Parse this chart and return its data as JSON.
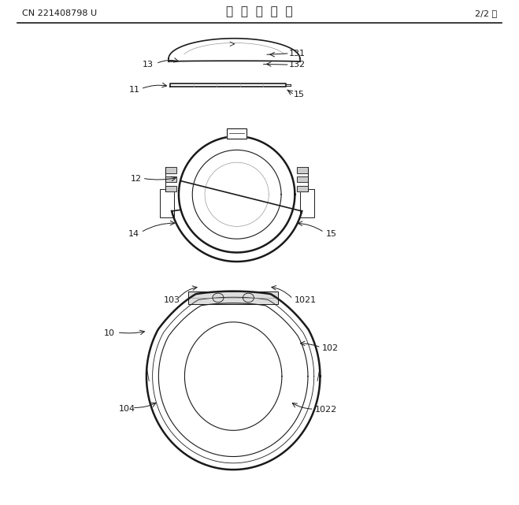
{
  "title_center": "说  明  书  附  图",
  "title_left": "CN 221408798 U",
  "title_right": "2/2 页",
  "bg_color": "#ffffff",
  "line_color": "#1a1a1a",
  "label_color": "#1a1a1a"
}
